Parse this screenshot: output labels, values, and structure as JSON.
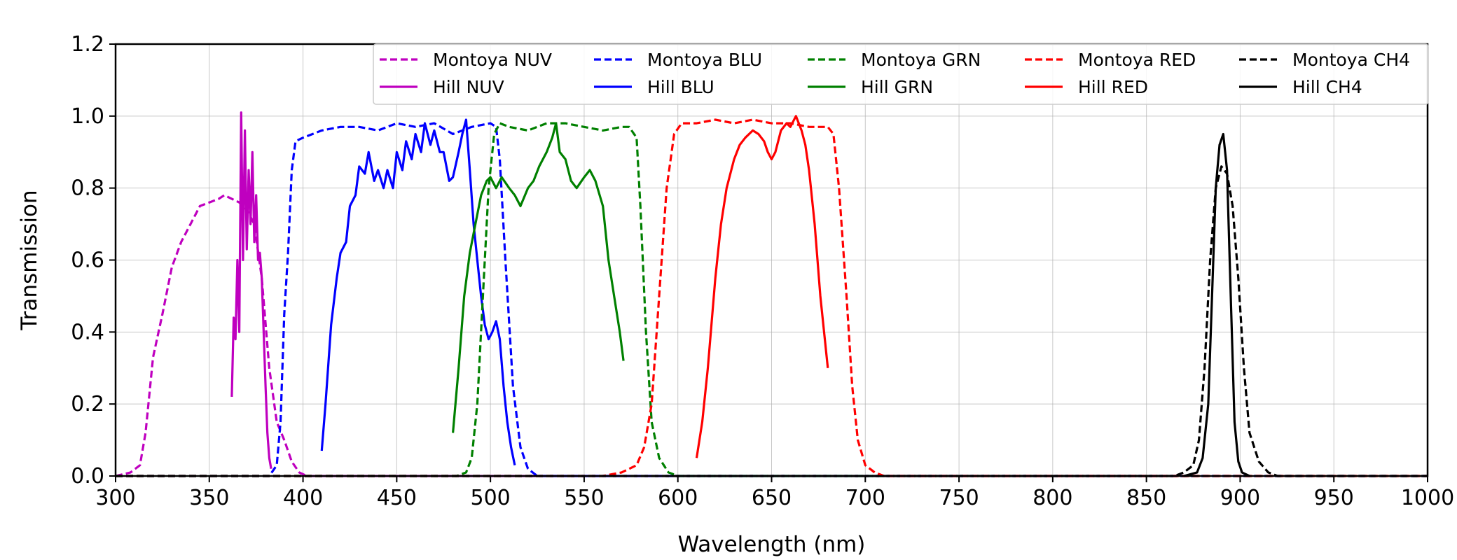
{
  "chart_data": {
    "type": "line",
    "xlabel": "Wavelength (nm)",
    "ylabel": "Transmission",
    "xlim": [
      300,
      1000
    ],
    "ylim": [
      0,
      1.2
    ],
    "xticks": [
      "300",
      "350",
      "400",
      "450",
      "500",
      "550",
      "600",
      "650",
      "700",
      "750",
      "800",
      "850",
      "900",
      "950",
      "1000"
    ],
    "yticks": [
      "0.0",
      "0.2",
      "0.4",
      "0.6",
      "0.8",
      "1.0",
      "1.2"
    ],
    "grid": true,
    "legend_position": "top-right",
    "legend_columns": 5,
    "series": [
      {
        "name": "Montoya NUV",
        "color": "#bf00bf",
        "style": "dashed",
        "x": [
          300,
          308,
          313,
          316,
          320,
          325,
          330,
          335,
          340,
          345,
          350,
          355,
          358,
          362,
          366,
          370,
          374,
          378,
          382,
          386,
          390,
          394,
          398,
          402,
          420,
          1000
        ],
        "y": [
          0,
          0.01,
          0.03,
          0.12,
          0.33,
          0.45,
          0.58,
          0.65,
          0.7,
          0.75,
          0.76,
          0.77,
          0.78,
          0.77,
          0.76,
          0.74,
          0.7,
          0.55,
          0.3,
          0.15,
          0.1,
          0.04,
          0.01,
          0,
          0,
          0
        ]
      },
      {
        "name": "Hill NUV",
        "color": "#bf00bf",
        "style": "solid",
        "x": [
          362,
          363,
          364,
          365,
          366,
          367,
          368,
          369,
          370,
          371,
          372,
          373,
          374,
          375,
          376,
          377,
          378,
          379,
          380,
          381,
          382,
          383
        ],
        "y": [
          0.22,
          0.44,
          0.38,
          0.6,
          0.4,
          1.01,
          0.6,
          0.96,
          0.63,
          0.85,
          0.7,
          0.9,
          0.65,
          0.78,
          0.6,
          0.62,
          0.55,
          0.4,
          0.25,
          0.12,
          0.05,
          0.02
        ]
      },
      {
        "name": "Montoya BLU",
        "color": "#0000ff",
        "style": "dashed",
        "x": [
          300,
          375,
          382,
          386,
          388,
          390,
          392,
          394,
          396,
          400,
          410,
          420,
          430,
          440,
          450,
          460,
          470,
          480,
          490,
          500,
          503,
          505,
          508,
          512,
          516,
          520,
          525,
          530,
          1000
        ],
        "y": [
          0,
          0,
          0,
          0.03,
          0.15,
          0.45,
          0.62,
          0.85,
          0.93,
          0.94,
          0.96,
          0.97,
          0.97,
          0.96,
          0.98,
          0.97,
          0.98,
          0.95,
          0.97,
          0.98,
          0.97,
          0.88,
          0.6,
          0.25,
          0.08,
          0.02,
          0,
          0,
          0
        ]
      },
      {
        "name": "Hill BLU",
        "color": "#0000ff",
        "style": "solid",
        "x": [
          410,
          412,
          415,
          418,
          420,
          423,
          425,
          428,
          430,
          433,
          435,
          438,
          440,
          443,
          445,
          448,
          450,
          453,
          455,
          458,
          460,
          463,
          465,
          468,
          470,
          473,
          475,
          478,
          480,
          483,
          485,
          487,
          489,
          491,
          493,
          495,
          497,
          499,
          501,
          503,
          505,
          507,
          509,
          511,
          513
        ],
        "y": [
          0.07,
          0.2,
          0.42,
          0.55,
          0.62,
          0.65,
          0.75,
          0.78,
          0.86,
          0.84,
          0.9,
          0.82,
          0.85,
          0.8,
          0.85,
          0.8,
          0.9,
          0.85,
          0.93,
          0.88,
          0.95,
          0.9,
          0.98,
          0.92,
          0.96,
          0.9,
          0.9,
          0.82,
          0.83,
          0.9,
          0.95,
          0.99,
          0.85,
          0.7,
          0.6,
          0.5,
          0.42,
          0.38,
          0.4,
          0.43,
          0.38,
          0.25,
          0.15,
          0.08,
          0.03
        ]
      },
      {
        "name": "Montoya GRN",
        "color": "#008000",
        "style": "dashed",
        "x": [
          300,
          482,
          487,
          490,
          493,
          496,
          499,
          502,
          505,
          510,
          520,
          530,
          540,
          550,
          560,
          570,
          574,
          578,
          580,
          583,
          586,
          590,
          595,
          600,
          1000
        ],
        "y": [
          0,
          0,
          0.01,
          0.05,
          0.2,
          0.5,
          0.8,
          0.95,
          0.98,
          0.97,
          0.96,
          0.98,
          0.98,
          0.97,
          0.96,
          0.97,
          0.97,
          0.94,
          0.75,
          0.4,
          0.15,
          0.05,
          0.01,
          0,
          0
        ]
      },
      {
        "name": "Hill GRN",
        "color": "#008000",
        "style": "solid",
        "x": [
          480,
          483,
          486,
          489,
          492,
          495,
          498,
          500,
          503,
          506,
          510,
          513,
          516,
          520,
          523,
          526,
          530,
          533,
          535,
          537,
          540,
          543,
          546,
          550,
          553,
          556,
          560,
          563,
          566,
          569,
          571
        ],
        "y": [
          0.12,
          0.3,
          0.5,
          0.62,
          0.7,
          0.78,
          0.82,
          0.83,
          0.8,
          0.83,
          0.8,
          0.78,
          0.75,
          0.8,
          0.82,
          0.86,
          0.9,
          0.94,
          0.98,
          0.9,
          0.88,
          0.82,
          0.8,
          0.83,
          0.85,
          0.82,
          0.75,
          0.6,
          0.5,
          0.4,
          0.32
        ]
      },
      {
        "name": "Montoya RED",
        "color": "#ff0000",
        "style": "dashed",
        "x": [
          300,
          560,
          570,
          578,
          582,
          586,
          590,
          594,
          598,
          602,
          610,
          620,
          630,
          640,
          650,
          660,
          670,
          680,
          683,
          686,
          690,
          693,
          696,
          700,
          705,
          710,
          1000
        ],
        "y": [
          0,
          0,
          0.01,
          0.03,
          0.08,
          0.2,
          0.5,
          0.8,
          0.95,
          0.98,
          0.98,
          0.99,
          0.98,
          0.99,
          0.98,
          0.98,
          0.97,
          0.97,
          0.95,
          0.8,
          0.5,
          0.25,
          0.1,
          0.03,
          0.01,
          0,
          0
        ]
      },
      {
        "name": "Hill RED",
        "color": "#ff0000",
        "style": "solid",
        "x": [
          610,
          613,
          616,
          620,
          623,
          626,
          630,
          633,
          636,
          640,
          643,
          646,
          648,
          650,
          652,
          655,
          658,
          660,
          663,
          666,
          668,
          670,
          673,
          676,
          680
        ],
        "y": [
          0.05,
          0.15,
          0.3,
          0.55,
          0.7,
          0.8,
          0.88,
          0.92,
          0.94,
          0.96,
          0.95,
          0.93,
          0.9,
          0.88,
          0.9,
          0.96,
          0.98,
          0.97,
          1.0,
          0.96,
          0.92,
          0.85,
          0.7,
          0.5,
          0.3
        ]
      },
      {
        "name": "Montoya CH4",
        "color": "#000000",
        "style": "dashed",
        "x": [
          300,
          865,
          870,
          875,
          878,
          881,
          884,
          887,
          890,
          893,
          896,
          899,
          902,
          905,
          910,
          915,
          920,
          1000
        ],
        "y": [
          0,
          0,
          0.01,
          0.03,
          0.1,
          0.3,
          0.6,
          0.8,
          0.86,
          0.84,
          0.75,
          0.55,
          0.3,
          0.12,
          0.04,
          0.01,
          0,
          0
        ]
      },
      {
        "name": "Hill CH4",
        "color": "#000000",
        "style": "solid",
        "x": [
          870,
          877,
          880,
          883,
          885,
          887,
          889,
          891,
          893,
          895,
          897,
          899,
          901,
          905
        ],
        "y": [
          0,
          0.01,
          0.05,
          0.2,
          0.5,
          0.8,
          0.92,
          0.95,
          0.85,
          0.5,
          0.15,
          0.04,
          0.01,
          0
        ]
      }
    ]
  }
}
